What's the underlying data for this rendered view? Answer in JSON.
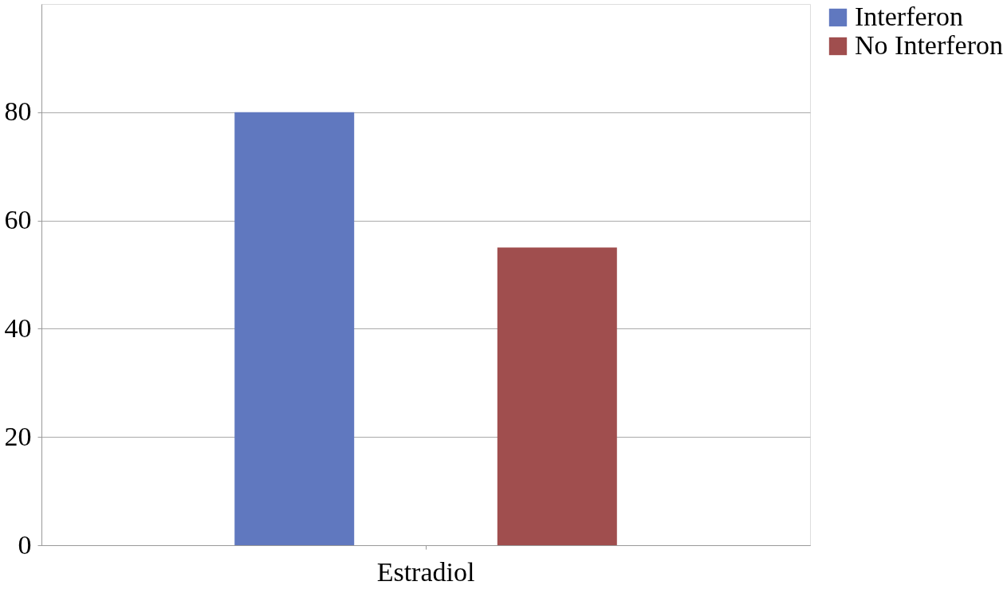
{
  "chart_data": {
    "type": "bar",
    "categories": [
      "Estradiol"
    ],
    "series": [
      {
        "name": "Interferon",
        "color": "#6078bf",
        "values": [
          80
        ]
      },
      {
        "name": "No Interferon",
        "color": "#a04e4e",
        "values": [
          55
        ]
      }
    ],
    "ylim": [
      0,
      100
    ],
    "yticks": [
      0,
      20,
      40,
      60,
      80
    ],
    "grid": "y",
    "legend": "right"
  }
}
